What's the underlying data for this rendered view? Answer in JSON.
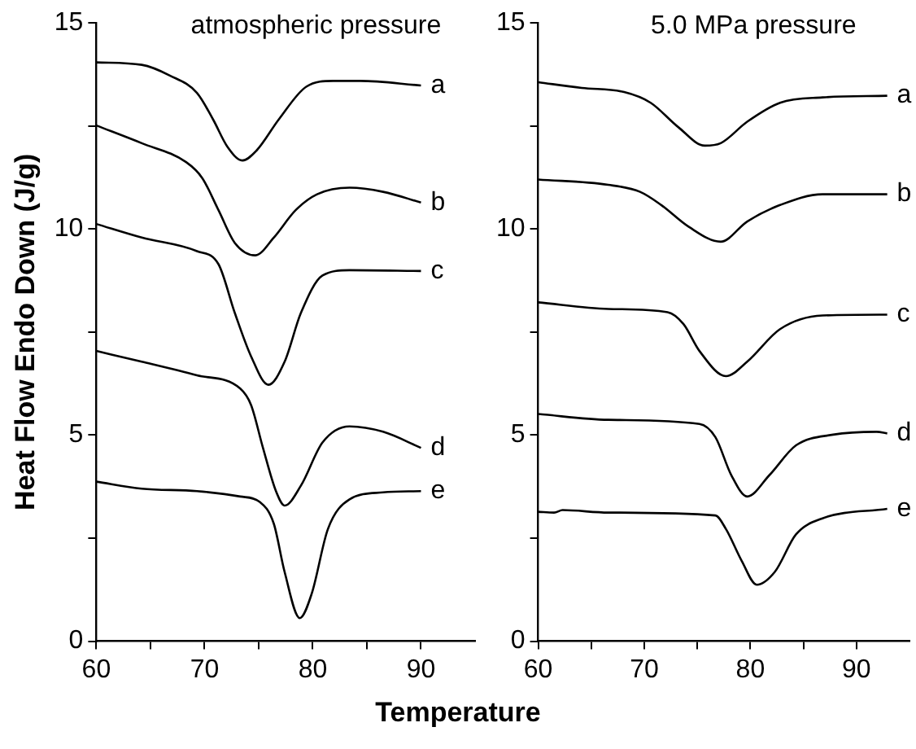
{
  "chart_data": [
    {
      "type": "line",
      "title": "atmospheric pressure",
      "xlabel": "Temperature",
      "ylabel": "Heat Flow Endo Down (J/g)",
      "xlim": [
        60,
        95
      ],
      "ylim": [
        0,
        15
      ],
      "xticks": [
        60,
        {
          "value": 65,
          "label": null
        },
        70,
        {
          "value": 75,
          "label": null
        },
        80,
        {
          "value": 85,
          "label": null
        },
        90
      ],
      "yticks": [
        0,
        {
          "value": 2.5,
          "label": null
        },
        5,
        {
          "value": 7.5,
          "label": null
        },
        10,
        {
          "value": 12.5,
          "label": null
        },
        15
      ],
      "series": [
        {
          "name": "a",
          "color": "#000000",
          "x": [
            60,
            64.2,
            66.8,
            69.3,
            70.8,
            72.1,
            73.5,
            74.8,
            76.9,
            79.4,
            81.9,
            84.4,
            90
          ],
          "values": [
            14.04,
            13.98,
            13.72,
            13.3,
            12.65,
            12.0,
            11.66,
            11.9,
            12.67,
            13.45,
            13.59,
            13.59,
            13.48
          ]
        },
        {
          "name": "b",
          "color": "#000000",
          "x": [
            60,
            64.2,
            68.3,
            69.8,
            71.3,
            72.8,
            74.7,
            76.4,
            78.4,
            80.4,
            83.4,
            86.5,
            90
          ],
          "values": [
            12.51,
            12.08,
            11.62,
            11.23,
            10.45,
            9.66,
            9.36,
            9.79,
            10.45,
            10.84,
            11.0,
            10.9,
            10.64
          ]
        },
        {
          "name": "c",
          "color": "#000000",
          "x": [
            60,
            64.2,
            69.3,
            71.3,
            72.8,
            74.3,
            75.9,
            77.4,
            78.9,
            80.9,
            83.4,
            90
          ],
          "values": [
            10.12,
            9.79,
            9.46,
            9.14,
            7.96,
            6.91,
            6.22,
            6.78,
            7.96,
            8.87,
            9.0,
            8.98
          ]
        },
        {
          "name": "d",
          "color": "#000000",
          "x": [
            60,
            64.2,
            69.3,
            73.3,
            74.3,
            75.4,
            76.6,
            77.4,
            78.9,
            80.9,
            83.4,
            86.5,
            90
          ],
          "values": [
            7.04,
            6.78,
            6.45,
            6.13,
            5.73,
            4.69,
            3.64,
            3.29,
            3.77,
            4.82,
            5.21,
            5.08,
            4.69
          ]
        },
        {
          "name": "e",
          "color": "#000000",
          "x": [
            60,
            64.2,
            69.3,
            73.3,
            75.1,
            76.4,
            77.4,
            78.8,
            79.9,
            81.4,
            83.4,
            86.5,
            90
          ],
          "values": [
            3.87,
            3.7,
            3.64,
            3.51,
            3.38,
            2.85,
            1.68,
            0.56,
            1.15,
            2.72,
            3.44,
            3.61,
            3.64
          ]
        }
      ]
    },
    {
      "type": "line",
      "title": "5.0 MPa pressure",
      "xlim": [
        60,
        95
      ],
      "ylim": [
        0,
        15
      ],
      "xticks": [
        60,
        {
          "value": 65,
          "label": null
        },
        70,
        {
          "value": 75,
          "label": null
        },
        80,
        {
          "value": 85,
          "label": null
        },
        90
      ],
      "yticks": [
        0,
        {
          "value": 2.5,
          "label": null
        },
        5,
        {
          "value": 7.5,
          "label": null
        },
        10,
        {
          "value": 12.5,
          "label": null
        },
        15
      ],
      "series": [
        {
          "name": "a",
          "color": "#000000",
          "x": [
            60,
            64.1,
            68.1,
            70.6,
            73.2,
            75.7,
            77.2,
            79.7,
            82.8,
            86.8,
            92.9
          ],
          "values": [
            13.56,
            13.42,
            13.32,
            13.06,
            12.47,
            12.02,
            12.08,
            12.6,
            13.06,
            13.19,
            13.23
          ]
        },
        {
          "name": "b",
          "color": "#000000",
          "x": [
            60,
            66.6,
            69.6,
            71.6,
            74.2,
            77.2,
            79.7,
            82.8,
            86.8,
            89.9,
            92.9
          ],
          "values": [
            11.2,
            11.07,
            10.9,
            10.58,
            10.05,
            9.69,
            10.18,
            10.58,
            10.84,
            10.84,
            10.84
          ]
        },
        {
          "name": "c",
          "color": "#000000",
          "x": [
            60,
            66.6,
            72.2,
            73.7,
            75.2,
            77.7,
            79.7,
            82.8,
            86.8,
            92.9
          ],
          "values": [
            8.22,
            8.06,
            7.98,
            7.69,
            7.04,
            6.43,
            6.78,
            7.57,
            7.9,
            7.92
          ]
        },
        {
          "name": "d",
          "color": "#000000",
          "x": [
            60,
            66.6,
            75.2,
            76.7,
            78.2,
            79.7,
            81.8,
            84.3,
            87.8,
            91.9,
            92.9
          ],
          "values": [
            5.51,
            5.37,
            5.27,
            4.95,
            4.03,
            3.51,
            4.03,
            4.75,
            5.01,
            5.08,
            5.04
          ]
        },
        {
          "name": "e",
          "color": "#000000",
          "x": [
            60,
            61.5,
            62.3,
            66.6,
            76.7,
            77.7,
            79.2,
            80.6,
            82.3,
            84.3,
            86.8,
            92.9
          ],
          "values": [
            3.14,
            3.12,
            3.18,
            3.12,
            3.05,
            2.72,
            1.94,
            1.37,
            1.68,
            2.59,
            2.98,
            3.21
          ]
        }
      ]
    }
  ]
}
